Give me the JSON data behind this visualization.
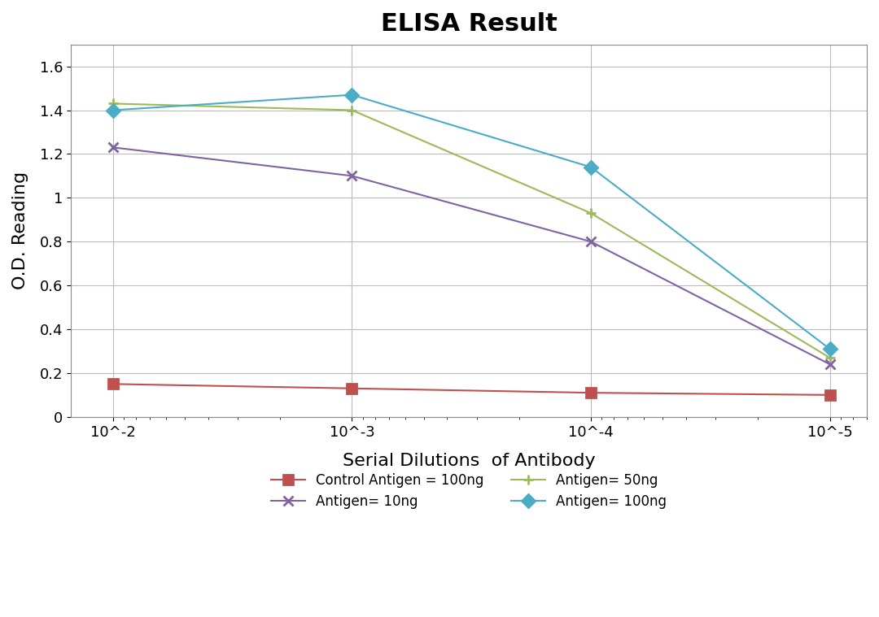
{
  "title": "ELISA Result",
  "xlabel": "Serial Dilutions  of Antibody",
  "ylabel": "O.D. Reading",
  "x_values": [
    0.01,
    0.001,
    0.0001,
    1e-05
  ],
  "x_labels": [
    "10^-2",
    "10^-3",
    "10^-4",
    "10^-5"
  ],
  "series": [
    {
      "label": "Control Antigen = 100ng",
      "color": "#c0504d",
      "marker": "s",
      "linestyle": "-",
      "values": [
        0.15,
        0.13,
        0.11,
        0.1
      ]
    },
    {
      "label": "Antigen= 10ng",
      "color": "#8064a2",
      "marker": "x",
      "linestyle": "-",
      "values": [
        1.23,
        1.1,
        0.8,
        0.24
      ]
    },
    {
      "label": "Antigen= 50ng",
      "color": "#9bbb59",
      "marker": "+",
      "linestyle": "-",
      "values": [
        1.43,
        1.4,
        0.93,
        0.27
      ]
    },
    {
      "label": "Antigen= 100ng",
      "color": "#4bacc6",
      "marker": "D",
      "linestyle": "-",
      "values": [
        1.4,
        1.47,
        1.14,
        0.31
      ]
    }
  ],
  "ylim": [
    0,
    1.7
  ],
  "yticks": [
    0,
    0.2,
    0.4,
    0.6,
    0.8,
    1.0,
    1.2,
    1.4,
    1.6
  ],
  "background_color": "#ffffff",
  "title_fontsize": 22,
  "axis_label_fontsize": 16,
  "tick_fontsize": 13,
  "legend_fontsize": 12
}
